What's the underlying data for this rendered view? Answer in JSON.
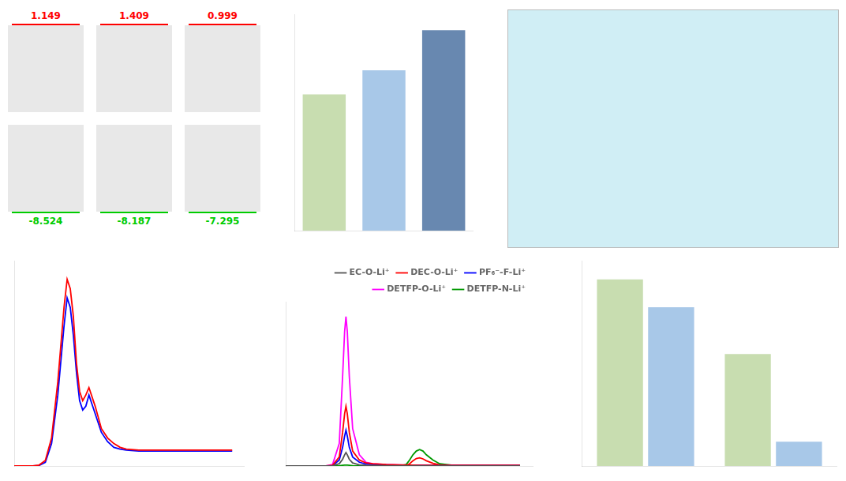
{
  "chart_data": [
    {
      "type": "orbitals",
      "annotations": [
        {
          "labels": [
            "1.149",
            "1.409",
            "0.999"
          ],
          "color": "#ff0000"
        },
        {
          "labels": [
            "-8.524",
            "-8.187",
            "-7.295"
          ],
          "color": "#00cc00"
        }
      ]
    },
    {
      "type": "bar",
      "categories": [
        null,
        null,
        null
      ],
      "values": [
        0.68,
        0.8,
        1.0
      ],
      "colors": [
        "#c8ddb0",
        "#a8c8e8",
        "#6888b0"
      ],
      "ylim": [
        0,
        1.08
      ],
      "grid": false,
      "tick_labels": false
    },
    {
      "type": "line",
      "series": [
        {
          "color": "#ff0000",
          "x": [
            1.5,
            1.8,
            1.9,
            2.0,
            2.1,
            2.2,
            2.3,
            2.35,
            2.4,
            2.45,
            2.5,
            2.55,
            2.6,
            2.65,
            2.7,
            2.8,
            2.9,
            3.0,
            3.1,
            3.2,
            3.3,
            3.5,
            3.7,
            4.0,
            4.5,
            5.0
          ],
          "values": [
            0.0,
            0.0,
            0.05,
            0.3,
            1.5,
            4.5,
            8.5,
            10.0,
            9.5,
            8.0,
            5.5,
            4.0,
            3.5,
            3.8,
            4.2,
            3.2,
            2.0,
            1.5,
            1.2,
            1.0,
            0.9,
            0.85,
            0.85,
            0.85,
            0.85,
            0.85
          ]
        },
        {
          "color": "#0000ff",
          "x": [
            1.5,
            1.8,
            1.9,
            2.0,
            2.1,
            2.2,
            2.3,
            2.35,
            2.4,
            2.45,
            2.5,
            2.55,
            2.6,
            2.65,
            2.7,
            2.8,
            2.9,
            3.0,
            3.1,
            3.2,
            3.3,
            3.5,
            3.7,
            4.0,
            4.5,
            5.0
          ],
          "values": [
            0.0,
            0.0,
            0.03,
            0.2,
            1.2,
            3.8,
            7.5,
            9.0,
            8.5,
            7.0,
            5.0,
            3.5,
            3.0,
            3.2,
            3.8,
            2.8,
            1.8,
            1.3,
            1.0,
            0.9,
            0.85,
            0.8,
            0.8,
            0.8,
            0.8,
            0.8
          ]
        }
      ],
      "xlim": [
        1.5,
        5.2
      ],
      "ylim": [
        0,
        11
      ],
      "grid": false,
      "tick_labels": false
    },
    {
      "type": "line",
      "series": [
        {
          "name": "EC-O-Li⁺",
          "color": "#555555",
          "x": [
            1.5,
            1.8,
            1.9,
            2.0,
            2.1,
            2.2,
            2.3,
            2.35,
            2.38,
            2.4,
            2.42,
            2.45,
            2.5,
            2.6,
            2.7,
            2.8,
            3.0,
            3.2,
            3.5,
            3.8,
            4.2,
            4.5,
            5.0
          ],
          "values": [
            0.0,
            0.0,
            0.0,
            0.0,
            0.0,
            0.03,
            0.3,
            0.9,
            1.5,
            1.8,
            1.5,
            0.9,
            0.4,
            0.15,
            0.08,
            0.06,
            0.04,
            0.03,
            0.02,
            0.02,
            0.02,
            0.02,
            0.02
          ]
        },
        {
          "name": "DEC-O-Li⁺",
          "color": "#ff0000",
          "x": [
            1.5,
            1.8,
            1.9,
            2.0,
            2.1,
            2.2,
            2.3,
            2.35,
            2.38,
            2.4,
            2.42,
            2.45,
            2.5,
            2.6,
            2.7,
            2.8,
            3.0,
            3.2,
            3.5,
            3.8,
            4.2,
            4.5,
            5.0
          ],
          "values": [
            0.0,
            0.0,
            0.0,
            0.0,
            0.0,
            0.1,
            1.2,
            4.5,
            7.0,
            8.0,
            7.0,
            4.5,
            2.0,
            0.8,
            0.4,
            0.3,
            0.2,
            0.15,
            0.1,
            0.1,
            0.1,
            0.1,
            0.1
          ]
        },
        {
          "name": "PF₆⁻-F-Li⁺",
          "color": "#0000ff",
          "x": [
            1.5,
            1.8,
            1.9,
            2.0,
            2.1,
            2.2,
            2.3,
            2.35,
            2.38,
            2.4,
            2.42,
            2.45,
            2.5,
            2.6,
            2.7,
            2.8,
            3.0,
            3.2,
            3.5,
            3.8,
            4.2,
            4.5,
            5.0
          ],
          "values": [
            0.0,
            0.0,
            0.0,
            0.0,
            0.0,
            0.05,
            0.8,
            2.5,
            4.0,
            4.8,
            4.0,
            2.5,
            1.2,
            0.5,
            0.25,
            0.2,
            0.15,
            0.1,
            0.08,
            0.08,
            0.08,
            0.08,
            0.08
          ]
        },
        {
          "name": "DETFP-O-Li⁺",
          "color": "#ff00ff",
          "x": [
            1.5,
            1.8,
            1.9,
            2.0,
            2.1,
            2.2,
            2.3,
            2.35,
            2.38,
            2.4,
            2.42,
            2.45,
            2.5,
            2.6,
            2.7,
            2.8,
            3.0,
            3.2,
            3.5,
            3.8,
            4.2,
            4.5,
            5.0
          ],
          "values": [
            0.0,
            0.0,
            0.0,
            0.0,
            0.0,
            0.2,
            3.0,
            12.0,
            18.0,
            20.0,
            18.0,
            12.0,
            5.0,
            1.5,
            0.5,
            0.3,
            0.2,
            0.15,
            0.1,
            0.1,
            0.1,
            0.1,
            0.1
          ]
        },
        {
          "name": "DETFP-N-Li⁺",
          "color": "#009900",
          "x": [
            1.5,
            1.8,
            1.9,
            2.0,
            2.1,
            2.2,
            2.3,
            2.35,
            2.38,
            2.4,
            2.42,
            2.45,
            2.5,
            2.6,
            2.7,
            2.8,
            3.0,
            3.2,
            3.5,
            3.8,
            4.2,
            4.5,
            5.0
          ],
          "values": [
            0.0,
            0.0,
            0.0,
            0.0,
            0.0,
            0.0,
            0.05,
            0.1,
            0.12,
            0.12,
            0.12,
            0.1,
            0.05,
            0.02,
            0.01,
            0.01,
            0.01,
            0.01,
            0.01,
            0.01,
            0.01,
            0.01,
            0.01
          ]
        },
        {
          "color": "#009900",
          "x": [
            3.0,
            3.2,
            3.3,
            3.35,
            3.4,
            3.45,
            3.5,
            3.55,
            3.6,
            3.7,
            3.8,
            4.0,
            4.5,
            5.0
          ],
          "values": [
            0.0,
            0.0,
            0.2,
            0.8,
            1.5,
            2.0,
            2.2,
            2.0,
            1.5,
            0.8,
            0.3,
            0.1,
            0.05,
            0.02
          ]
        },
        {
          "color": "#ff0000",
          "x": [
            3.0,
            3.2,
            3.3,
            3.35,
            3.4,
            3.45,
            3.5,
            3.55,
            3.6,
            3.7,
            3.8,
            4.0,
            4.5,
            5.0
          ],
          "values": [
            0.0,
            0.0,
            0.05,
            0.3,
            0.7,
            1.0,
            1.1,
            0.95,
            0.7,
            0.35,
            0.15,
            0.08,
            0.05,
            0.02
          ]
        }
      ],
      "xlim": [
        1.5,
        5.2
      ],
      "ylim": [
        0,
        22
      ],
      "legend": "upper right",
      "grid": false,
      "tick_labels": false
    },
    {
      "type": "bar",
      "categories": [
        null,
        null
      ],
      "series": [
        {
          "color": "#c8ddb0",
          "values": [
            1.0,
            0.6
          ]
        },
        {
          "color": "#a8c8e8",
          "values": [
            0.85,
            0.13
          ]
        }
      ],
      "ylim": [
        0,
        1.1
      ],
      "grid": false,
      "tick_labels": false
    }
  ]
}
